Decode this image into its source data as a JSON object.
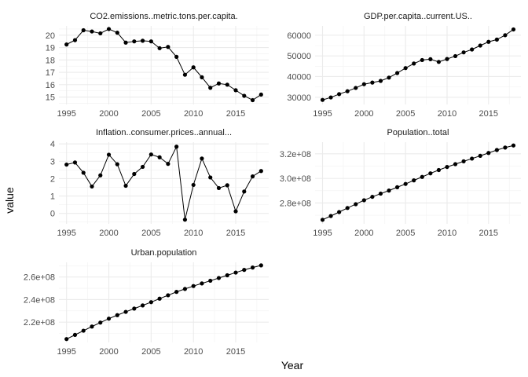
{
  "figure": {
    "xlabel": "Year",
    "ylabel": "value"
  },
  "chart_data": [
    {
      "type": "line",
      "title": "CO2.emissions..metric.tons.per.capita.",
      "x": [
        1995,
        1996,
        1997,
        1998,
        1999,
        2000,
        2001,
        2002,
        2003,
        2004,
        2005,
        2006,
        2007,
        2008,
        2009,
        2010,
        2011,
        2012,
        2013,
        2014,
        2015,
        2016,
        2017,
        2018
      ],
      "values": [
        19.25,
        19.6,
        20.4,
        20.3,
        20.15,
        20.5,
        20.2,
        19.4,
        19.5,
        19.55,
        19.5,
        18.95,
        19.05,
        18.25,
        16.8,
        17.4,
        16.6,
        15.75,
        16.1,
        16.0,
        15.55,
        15.1,
        14.75,
        15.2
      ],
      "xlim": [
        1994.1,
        2018.9
      ],
      "ylim": [
        14.4,
        20.75
      ],
      "xticks": [
        1995,
        2000,
        2005,
        2010,
        2015
      ],
      "xtick_labels": [
        "1995",
        "2000",
        "2005",
        "2010",
        "2015"
      ],
      "yticks": [
        15,
        16,
        17,
        18,
        19,
        20
      ],
      "ytick_labels": [
        "15",
        "16",
        "17",
        "18",
        "19",
        "20"
      ]
    },
    {
      "type": "line",
      "title": "GDP.per.capita..current.US..",
      "x": [
        1995,
        1996,
        1997,
        1998,
        1999,
        2000,
        2001,
        2002,
        2003,
        2004,
        2005,
        2006,
        2007,
        2008,
        2009,
        2010,
        2011,
        2012,
        2013,
        2014,
        2015,
        2016,
        2017,
        2018
      ],
      "values": [
        28700,
        29900,
        31500,
        32900,
        34500,
        36300,
        37100,
        37900,
        39500,
        41700,
        44100,
        46300,
        48000,
        48400,
        47100,
        48500,
        49900,
        51700,
        53100,
        55000,
        56800,
        57900,
        60000,
        62800
      ],
      "xlim": [
        1994.1,
        2018.9
      ],
      "ylim": [
        26500,
        64500
      ],
      "xticks": [
        1995,
        2000,
        2005,
        2010,
        2015
      ],
      "xtick_labels": [
        "1995",
        "2000",
        "2005",
        "2010",
        "2015"
      ],
      "yticks": [
        30000,
        40000,
        50000,
        60000
      ],
      "ytick_labels": [
        "30000",
        "40000",
        "50000",
        "60000"
      ]
    },
    {
      "type": "line",
      "title": "Inflation..consumer.prices..annual...",
      "x": [
        1995,
        1996,
        1997,
        1998,
        1999,
        2000,
        2001,
        2002,
        2003,
        2004,
        2005,
        2006,
        2007,
        2008,
        2009,
        2010,
        2011,
        2012,
        2013,
        2014,
        2015,
        2016,
        2017,
        2018
      ],
      "values": [
        2.81,
        2.93,
        2.34,
        1.55,
        2.19,
        3.38,
        2.83,
        1.59,
        2.27,
        2.68,
        3.39,
        3.23,
        2.85,
        3.84,
        -0.36,
        1.64,
        3.16,
        2.07,
        1.46,
        1.62,
        0.12,
        1.26,
        2.13,
        2.44
      ],
      "xlim": [
        1994.1,
        2018.9
      ],
      "ylim": [
        -0.6,
        4.1
      ],
      "xticks": [
        1995,
        2000,
        2005,
        2010,
        2015
      ],
      "xtick_labels": [
        "1995",
        "2000",
        "2005",
        "2010",
        "2015"
      ],
      "yticks": [
        0,
        1,
        2,
        3,
        4
      ],
      "ytick_labels": [
        "0",
        "1",
        "2",
        "3",
        "4"
      ]
    },
    {
      "type": "line",
      "title": "Population..total",
      "x": [
        1995,
        1996,
        1997,
        1998,
        1999,
        2000,
        2001,
        2002,
        2003,
        2004,
        2005,
        2006,
        2007,
        2008,
        2009,
        2010,
        2011,
        2012,
        2013,
        2014,
        2015,
        2016,
        2017,
        2018
      ],
      "values": [
        266300000,
        269400000,
        272600000,
        275900000,
        279000000,
        282200000,
        285000000,
        287600000,
        290100000,
        292800000,
        295500000,
        298400000,
        301200000,
        304100000,
        306800000,
        309300000,
        311600000,
        313900000,
        316100000,
        318400000,
        320700000,
        323100000,
        325100000,
        326800000
      ],
      "xlim": [
        1994.1,
        2018.9
      ],
      "ylim": [
        263000000,
        329500000
      ],
      "xticks": [
        1995,
        2000,
        2005,
        2010,
        2015
      ],
      "xtick_labels": [
        "1995",
        "2000",
        "2005",
        "2010",
        "2015"
      ],
      "yticks": [
        280000000,
        300000000,
        320000000
      ],
      "ytick_labels": [
        "2.8e+08",
        "3.0e+08",
        "3.2e+08"
      ]
    },
    {
      "type": "line",
      "title": "Urban.population",
      "x": [
        1995,
        1996,
        1997,
        1998,
        1999,
        2000,
        2001,
        2002,
        2003,
        2004,
        2005,
        2006,
        2007,
        2008,
        2009,
        2010,
        2011,
        2012,
        2013,
        2014,
        2015,
        2016,
        2017,
        2018
      ],
      "values": [
        205000000,
        208700000,
        212400000,
        216100000,
        219600000,
        223100000,
        226200000,
        229100000,
        232000000,
        234800000,
        237700000,
        240800000,
        243800000,
        246800000,
        249400000,
        252000000,
        254300000,
        256700000,
        259100000,
        261500000,
        263900000,
        266300000,
        268400000,
        270300000
      ],
      "xlim": [
        1994.1,
        2018.9
      ],
      "ylim": [
        202000000,
        273000000
      ],
      "xticks": [
        1995,
        2000,
        2005,
        2010,
        2015
      ],
      "xtick_labels": [
        "1995",
        "2000",
        "2005",
        "2010",
        "2015"
      ],
      "yticks": [
        220000000,
        240000000,
        260000000
      ],
      "ytick_labels": [
        "2.2e+08",
        "2.4e+08",
        "2.6e+08"
      ]
    }
  ]
}
